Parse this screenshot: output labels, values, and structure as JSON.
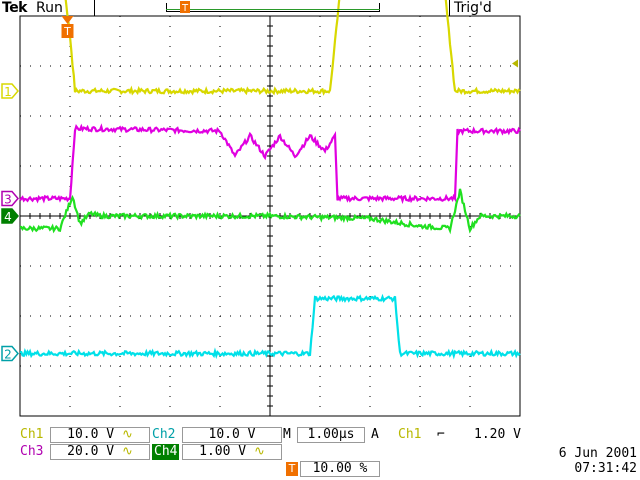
{
  "header": {
    "brand": "Tek",
    "status": "Run",
    "trigger_status": "Trig'd"
  },
  "markers": {
    "trigger_marker": "T",
    "ch1": "1",
    "ch2": "2",
    "ch3": "3",
    "ch4": "4"
  },
  "readout": {
    "ch1_label": "Ch1",
    "ch1_scale": "10.0 V",
    "ch1_coupling": "∿",
    "ch2_label": "Ch2",
    "ch2_scale": "10.0 V",
    "ch3_label": "Ch3",
    "ch3_scale": "20.0 V",
    "ch3_coupling": "∿",
    "ch4_label": "Ch4",
    "ch4_scale": "1.00 V",
    "ch4_coupling": "∿",
    "timebase_prefix": "M",
    "timebase": "1.00µs",
    "trigger_mode": "A",
    "trigger_source": "Ch1",
    "trigger_slope": "⌐",
    "trigger_level": "1.20 V",
    "trigger_position_marker": "T",
    "trigger_position": "10.00 %",
    "date": "6 Jun  2001",
    "time": "07:31:42"
  },
  "colors": {
    "ch1": "#d8d800",
    "ch2": "#00e0e8",
    "ch3": "#e000e0",
    "ch4": "#20e020",
    "trigger_marker": "#f07000",
    "grid": "#000000"
  },
  "chart_data": {
    "type": "line",
    "x_divisions": 10,
    "y_divisions": 8,
    "timebase_per_div_us": 1.0,
    "series": [
      {
        "name": "Ch1",
        "x": [
          0,
          0.9,
          1.0,
          1.1,
          6.2,
          6.4,
          8.5,
          8.7,
          10
        ],
        "y": [
          4.45,
          4.45,
          3.6,
          2.5,
          2.5,
          4.45,
          4.45,
          2.5,
          2.5
        ]
      },
      {
        "name": "Ch3",
        "x": [
          0,
          1.0,
          1.1,
          4.0,
          4.3,
          4.6,
          4.9,
          5.2,
          5.5,
          5.8,
          6.1,
          6.3,
          6.35,
          8.7,
          8.75,
          10
        ],
        "y": [
          0.35,
          0.35,
          1.75,
          1.7,
          1.2,
          1.6,
          1.2,
          1.6,
          1.2,
          1.6,
          1.3,
          1.6,
          0.35,
          0.35,
          1.7,
          1.7
        ]
      },
      {
        "name": "Ch4",
        "x": [
          0,
          0.8,
          1.05,
          1.2,
          1.4,
          1.6,
          5.0,
          7.0,
          8.0,
          8.6,
          8.8,
          9.0,
          9.2,
          10
        ],
        "y": [
          -0.25,
          -0.25,
          0.4,
          -0.15,
          0.05,
          0.0,
          0.0,
          -0.05,
          -0.2,
          -0.25,
          0.5,
          -0.25,
          0.0,
          0.0
        ]
      },
      {
        "name": "Ch2",
        "x": [
          0,
          5.8,
          5.9,
          7.5,
          7.6,
          10
        ],
        "y": [
          -2.75,
          -2.75,
          -1.65,
          -1.65,
          -2.75,
          -2.75
        ]
      }
    ]
  }
}
